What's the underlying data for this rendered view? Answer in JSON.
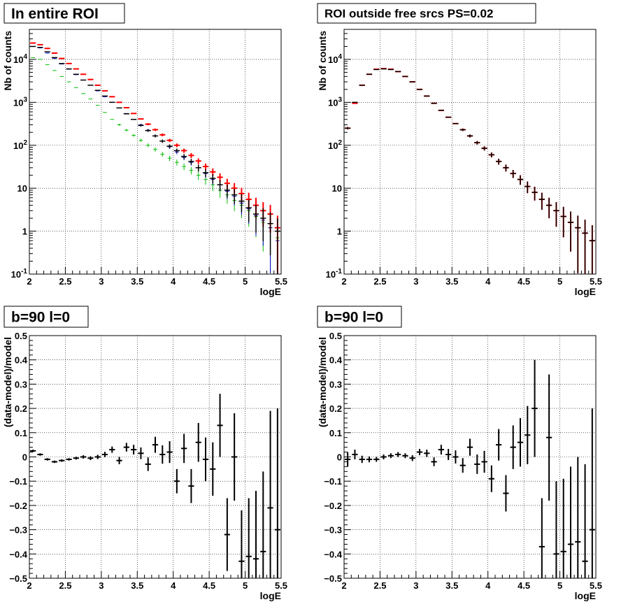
{
  "colors": {
    "data": "#000000",
    "model": "#ff0000",
    "component_blue": "#0000cc",
    "component_green": "#00bb00"
  },
  "chart_data": [
    {
      "type": "scatter",
      "title": "In entire ROI",
      "xlabel": "logE",
      "ylabel": "Nb of counts",
      "xlim": [
        2,
        5.5
      ],
      "ylim": [
        0.1,
        50000
      ],
      "yscale": "log",
      "grid": true,
      "x_ticks": [
        "2",
        "2.5",
        "3",
        "3.5",
        "4",
        "4.5",
        "5",
        "5.5"
      ],
      "y_ticks": [
        "10^-1",
        "1",
        "10",
        "10^2",
        "10^3",
        "10^4"
      ],
      "x": [
        2.05,
        2.15,
        2.25,
        2.35,
        2.45,
        2.55,
        2.65,
        2.75,
        2.85,
        2.95,
        3.05,
        3.15,
        3.25,
        3.35,
        3.45,
        3.55,
        3.65,
        3.75,
        3.85,
        3.95,
        4.05,
        4.15,
        4.25,
        4.35,
        4.45,
        4.55,
        4.65,
        4.75,
        4.85,
        4.95,
        5.05,
        5.15,
        5.25,
        5.35,
        5.45
      ],
      "series": [
        {
          "values": [
            20000,
            19000,
            15000,
            11000,
            8000,
            6000,
            4500,
            3300,
            2500,
            1900,
            1400,
            1000,
            740,
            540,
            400,
            290,
            220,
            165,
            125,
            95,
            75,
            55,
            42,
            30,
            23,
            17,
            12,
            9,
            7,
            5,
            3.5,
            2.5,
            2,
            1.5,
            1
          ]
        },
        {
          "values": [
            24000,
            22000,
            18000,
            14000,
            10500,
            8000,
            6000,
            4500,
            3400,
            2500,
            1850,
            1350,
            1000,
            750,
            550,
            410,
            310,
            230,
            175,
            130,
            100,
            75,
            58,
            43,
            32,
            24,
            18,
            13,
            10,
            7.5,
            5.5,
            4,
            3,
            2.5,
            1.2
          ]
        },
        {
          "values": [
            20000,
            18500,
            14000,
            10500,
            7800,
            5900,
            4400,
            3300,
            2500,
            1850,
            1350,
            1000,
            740,
            550,
            400,
            300,
            225,
            165,
            125,
            92,
            70,
            52,
            40,
            30,
            22,
            16,
            12,
            8.5,
            6.5,
            4.5,
            3.3,
            2.3,
            1.8,
            1.2,
            0.6
          ]
        },
        {
          "values": [
            11000,
            10000,
            7500,
            5500,
            4000,
            3000,
            2200,
            1600,
            1200,
            850,
            580,
            400,
            300,
            225,
            170,
            130,
            100,
            80,
            62,
            50,
            40,
            32,
            26,
            20,
            16,
            12,
            9,
            7,
            5.2,
            4,
            3,
            2.2,
            1.6,
            1.2,
            0.7
          ]
        }
      ]
    },
    {
      "type": "scatter",
      "title": "ROI outside free srcs PS=0.02",
      "xlabel": "logE",
      "ylabel": "Nb of counts",
      "xlim": [
        2,
        5.5
      ],
      "ylim": [
        0.1,
        50000
      ],
      "yscale": "log",
      "grid": true,
      "x_ticks": [
        "2",
        "2.5",
        "3",
        "3.5",
        "4",
        "4.5",
        "5",
        "5.5"
      ],
      "y_ticks": [
        "10^-1",
        "1",
        "10",
        "10^2",
        "10^3",
        "10^4"
      ],
      "x": [
        2.05,
        2.15,
        2.25,
        2.35,
        2.45,
        2.55,
        2.65,
        2.75,
        2.85,
        2.95,
        3.05,
        3.15,
        3.25,
        3.35,
        3.45,
        3.55,
        3.65,
        3.75,
        3.85,
        3.95,
        4.05,
        4.15,
        4.25,
        4.35,
        4.45,
        4.55,
        4.65,
        4.75,
        4.85,
        4.95,
        5.05,
        5.15,
        5.25,
        5.35,
        5.45
      ],
      "series": [
        {
          "values": [
            250,
            1000,
            2500,
            4500,
            5800,
            6000,
            5800,
            5200,
            4000,
            3000,
            2000,
            1400,
            950,
            650,
            450,
            320,
            230,
            165,
            115,
            85,
            60,
            42,
            30,
            22,
            16,
            11,
            8,
            5.5,
            4,
            3,
            2.2,
            1.6,
            1.2,
            0.9,
            0.6
          ]
        },
        {
          "values": [
            250,
            950,
            2500,
            4500,
            5900,
            6100,
            5900,
            5200,
            4000,
            3000,
            2000,
            1400,
            950,
            650,
            450,
            320,
            230,
            165,
            115,
            85,
            60,
            42,
            30,
            22,
            16,
            11,
            8,
            5.5,
            4,
            3,
            2.2,
            1.6,
            1.2,
            0.9,
            0.6
          ]
        }
      ]
    },
    {
      "type": "scatter",
      "title": "b=90 l=0",
      "xlabel": "logE",
      "ylabel": "(data-model)/model",
      "xlim": [
        2,
        5.5
      ],
      "ylim": [
        -0.5,
        0.5
      ],
      "grid": true,
      "x_ticks": [
        "2",
        "2.5",
        "3",
        "3.5",
        "4",
        "4.5",
        "5",
        "5.5"
      ],
      "y_ticks": [
        "-0.5",
        "-0.4",
        "-0.3",
        "-0.2",
        "-0.1",
        "0",
        "0.1",
        "0.2",
        "0.3",
        "0.4",
        "0.5"
      ],
      "x": [
        2.05,
        2.15,
        2.25,
        2.35,
        2.45,
        2.55,
        2.65,
        2.75,
        2.85,
        2.95,
        3.05,
        3.15,
        3.25,
        3.35,
        3.45,
        3.55,
        3.65,
        3.75,
        3.85,
        3.95,
        4.05,
        4.15,
        4.25,
        4.35,
        4.45,
        4.55,
        4.65,
        4.75,
        4.85,
        4.95,
        5.05,
        5.15,
        5.25,
        5.35,
        5.45
      ],
      "values": [
        0.025,
        0.01,
        -0.01,
        -0.02,
        -0.015,
        -0.01,
        -0.005,
        0.0,
        -0.005,
        0.0,
        0.01,
        0.03,
        -0.015,
        0.04,
        0.03,
        0.015,
        -0.03,
        0.05,
        0.01,
        0.02,
        -0.1,
        0.035,
        -0.12,
        0.06,
        -0.01,
        -0.05,
        0.13,
        -0.32,
        0.0,
        -0.43,
        -0.41,
        -0.42,
        -0.39,
        -0.21,
        -0.3
      ],
      "errors": [
        0.005,
        0.005,
        0.005,
        0.005,
        0.005,
        0.005,
        0.006,
        0.007,
        0.008,
        0.009,
        0.011,
        0.013,
        0.015,
        0.018,
        0.02,
        0.024,
        0.028,
        0.033,
        0.038,
        0.045,
        0.05,
        0.06,
        0.07,
        0.08,
        0.09,
        0.11,
        0.13,
        0.15,
        0.18,
        0.21,
        0.24,
        0.28,
        0.33,
        0.4,
        0.5
      ]
    },
    {
      "type": "scatter",
      "title": "b=90 l=0",
      "xlabel": "logE",
      "ylabel": "(data-model)/model",
      "xlim": [
        2,
        5.5
      ],
      "ylim": [
        -0.5,
        0.5
      ],
      "grid": true,
      "x_ticks": [
        "2",
        "2.5",
        "3",
        "3.5",
        "4",
        "4.5",
        "5",
        "5.5"
      ],
      "y_ticks": [
        "-0.5",
        "-0.4",
        "-0.3",
        "-0.2",
        "-0.1",
        "0",
        "0.1",
        "0.2",
        "0.3",
        "0.4",
        "0.5"
      ],
      "x": [
        2.05,
        2.15,
        2.25,
        2.35,
        2.45,
        2.55,
        2.65,
        2.75,
        2.85,
        2.95,
        3.05,
        3.15,
        3.25,
        3.35,
        3.45,
        3.55,
        3.65,
        3.75,
        3.85,
        3.95,
        4.05,
        4.15,
        4.25,
        4.35,
        4.45,
        4.55,
        4.65,
        4.75,
        4.85,
        4.95,
        5.05,
        5.15,
        5.25,
        5.35,
        5.45
      ],
      "values": [
        -0.01,
        0.01,
        -0.01,
        -0.01,
        -0.01,
        0.0,
        0.005,
        0.01,
        0.005,
        -0.005,
        0.02,
        0.015,
        -0.02,
        0.03,
        0.01,
        0.0,
        -0.035,
        0.04,
        -0.03,
        -0.02,
        -0.09,
        0.05,
        -0.15,
        0.04,
        0.06,
        0.09,
        0.2,
        -0.37,
        0.08,
        -0.4,
        -0.39,
        -0.36,
        -0.35,
        -0.43,
        -0.3
      ],
      "errors": [
        0.03,
        0.02,
        0.015,
        0.012,
        0.01,
        0.01,
        0.01,
        0.01,
        0.01,
        0.012,
        0.013,
        0.015,
        0.018,
        0.02,
        0.023,
        0.027,
        0.03,
        0.035,
        0.04,
        0.045,
        0.055,
        0.065,
        0.075,
        0.09,
        0.1,
        0.12,
        0.2,
        0.2,
        0.26,
        0.3,
        0.3,
        0.32,
        0.35,
        0.4,
        0.5
      ]
    }
  ]
}
